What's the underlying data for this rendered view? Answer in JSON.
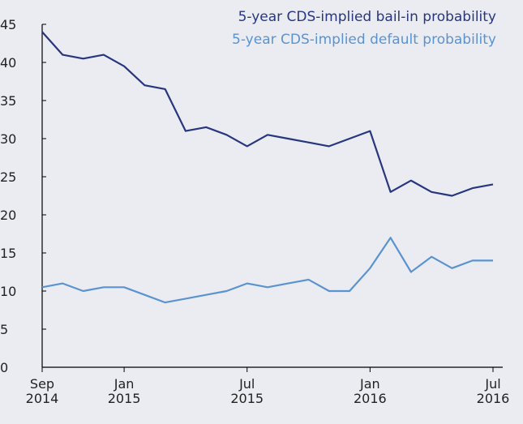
{
  "chart_data": {
    "type": "line",
    "x": [
      "2014-09",
      "2014-10",
      "2014-11",
      "2014-12",
      "2015-01",
      "2015-02",
      "2015-03",
      "2015-04",
      "2015-05",
      "2015-06",
      "2015-07",
      "2015-08",
      "2015-09",
      "2015-10",
      "2015-11",
      "2015-12",
      "2016-01",
      "2016-02",
      "2016-03",
      "2016-04",
      "2016-05",
      "2016-06",
      "2016-07"
    ],
    "series": [
      {
        "name": "5-year CDS-implied bail-in probability",
        "color": "#27367f",
        "values": [
          44,
          41,
          40.5,
          41,
          39.5,
          37,
          36.5,
          31,
          31.5,
          30.5,
          29,
          30.5,
          30,
          29.5,
          29,
          30,
          31,
          23,
          24.5,
          23,
          22.5,
          23.5,
          24
        ]
      },
      {
        "name": "5-year CDS-implied default probability",
        "color": "#5b93d1",
        "values": [
          10.5,
          11,
          10,
          10.5,
          10.5,
          9.5,
          8.5,
          9,
          9.5,
          10,
          11,
          10.5,
          11,
          11.5,
          10,
          10,
          13,
          17,
          12.5,
          14.5,
          13,
          14,
          14
        ]
      }
    ],
    "xlim": [
      "2014-09",
      "2016-07"
    ],
    "xticks": [
      {
        "value": "2014-09",
        "label": "Sep 2014"
      },
      {
        "value": "2015-01",
        "label": "Jan 2015"
      },
      {
        "value": "2015-07",
        "label": "Jul 2015"
      },
      {
        "value": "2016-01",
        "label": "Jan 2016"
      },
      {
        "value": "2016-07",
        "label": "Jul 2016"
      }
    ],
    "ylim": [
      0,
      45
    ],
    "yticks": [
      0,
      5,
      10,
      15,
      20,
      25,
      30,
      35,
      40,
      45
    ],
    "legend": "top-right"
  }
}
